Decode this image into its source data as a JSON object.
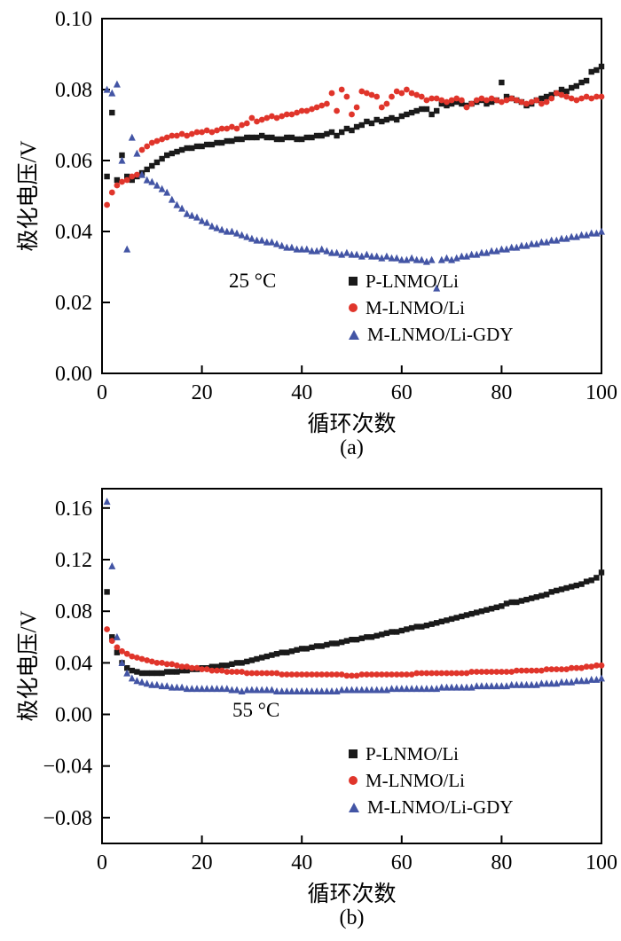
{
  "page": {
    "background": "#ffffff"
  },
  "chart_data": [
    {
      "type": "scatter",
      "panel_label": "(a)",
      "annotation": "25 °C",
      "xlabel": "循环次数",
      "ylabel": "极化电压/V",
      "xlim": [
        0,
        100
      ],
      "ylim": [
        0,
        0.1
      ],
      "xticks": [
        0,
        20,
        40,
        60,
        80,
        100
      ],
      "yticks": [
        0,
        0.02,
        0.04,
        0.06,
        0.08,
        0.1
      ],
      "legend_position": "inside-lower-right",
      "series": [
        {
          "name": "P-LNMO/Li",
          "marker": "square",
          "color": "#1a1a1a",
          "x_start": 1,
          "y": [
            0.0555,
            0.0735,
            0.0545,
            0.0615,
            0.0555,
            0.0545,
            0.0555,
            0.0565,
            0.0575,
            0.0585,
            0.0595,
            0.0605,
            0.0615,
            0.062,
            0.0625,
            0.063,
            0.0635,
            0.0635,
            0.064,
            0.064,
            0.0645,
            0.0645,
            0.065,
            0.065,
            0.0655,
            0.0655,
            0.066,
            0.066,
            0.0665,
            0.0665,
            0.0665,
            0.067,
            0.0665,
            0.0665,
            0.066,
            0.066,
            0.0665,
            0.0665,
            0.066,
            0.066,
            0.0665,
            0.0665,
            0.067,
            0.067,
            0.0675,
            0.068,
            0.067,
            0.068,
            0.069,
            0.0685,
            0.0695,
            0.07,
            0.071,
            0.0705,
            0.0715,
            0.071,
            0.0715,
            0.072,
            0.0715,
            0.0725,
            0.073,
            0.0735,
            0.074,
            0.0745,
            0.0745,
            0.073,
            0.074,
            0.076,
            0.0755,
            0.076,
            0.0765,
            0.076,
            0.0755,
            0.076,
            0.0765,
            0.077,
            0.076,
            0.0765,
            0.077,
            0.082,
            0.078,
            0.0775,
            0.077,
            0.0765,
            0.0755,
            0.076,
            0.077,
            0.0775,
            0.078,
            0.0785,
            0.079,
            0.08,
            0.0795,
            0.0805,
            0.081,
            0.082,
            0.0825,
            0.085,
            0.0855,
            0.0865
          ]
        },
        {
          "name": "M-LNMO/Li",
          "marker": "circle",
          "color": "#e0352b",
          "x_start": 1,
          "y": [
            0.0475,
            0.051,
            0.053,
            0.054,
            0.0545,
            0.0555,
            0.056,
            0.063,
            0.064,
            0.065,
            0.0655,
            0.066,
            0.0665,
            0.067,
            0.067,
            0.0675,
            0.067,
            0.0675,
            0.068,
            0.068,
            0.0685,
            0.068,
            0.0685,
            0.069,
            0.069,
            0.0695,
            0.069,
            0.07,
            0.0705,
            0.072,
            0.071,
            0.0715,
            0.072,
            0.0725,
            0.072,
            0.0725,
            0.073,
            0.073,
            0.0735,
            0.074,
            0.074,
            0.0745,
            0.075,
            0.0755,
            0.076,
            0.079,
            0.074,
            0.08,
            0.078,
            0.073,
            0.075,
            0.0795,
            0.079,
            0.0785,
            0.078,
            0.075,
            0.076,
            0.078,
            0.0795,
            0.079,
            0.08,
            0.079,
            0.0785,
            0.078,
            0.077,
            0.0775,
            0.0775,
            0.077,
            0.0765,
            0.077,
            0.0775,
            0.077,
            0.075,
            0.076,
            0.077,
            0.0775,
            0.077,
            0.0775,
            0.077,
            0.0765,
            0.077,
            0.0775,
            0.077,
            0.0765,
            0.076,
            0.0765,
            0.077,
            0.076,
            0.0765,
            0.0775,
            0.079,
            0.0785,
            0.078,
            0.0775,
            0.077,
            0.0775,
            0.078,
            0.0775,
            0.078,
            0.078
          ]
        },
        {
          "name": "M-LNMO/Li-GDY",
          "marker": "triangle",
          "color": "#4355a5",
          "x_start": 1,
          "y": [
            0.08,
            0.079,
            0.0815,
            0.06,
            0.035,
            0.0665,
            0.062,
            0.056,
            0.0545,
            0.054,
            0.053,
            0.052,
            0.051,
            0.049,
            0.0475,
            0.0465,
            0.045,
            0.0445,
            0.044,
            0.043,
            0.0425,
            0.0415,
            0.041,
            0.0405,
            0.04,
            0.04,
            0.0395,
            0.039,
            0.0385,
            0.038,
            0.0375,
            0.0375,
            0.037,
            0.037,
            0.0365,
            0.036,
            0.0355,
            0.0355,
            0.035,
            0.035,
            0.035,
            0.0345,
            0.0345,
            0.035,
            0.0345,
            0.034,
            0.034,
            0.0335,
            0.034,
            0.0335,
            0.0335,
            0.033,
            0.0335,
            0.033,
            0.033,
            0.0325,
            0.033,
            0.0325,
            0.0325,
            0.032,
            0.032,
            0.0325,
            0.032,
            0.032,
            0.0315,
            0.032,
            0.024,
            0.032,
            0.0325,
            0.032,
            0.0325,
            0.033,
            0.033,
            0.0335,
            0.0335,
            0.034,
            0.034,
            0.0345,
            0.0345,
            0.035,
            0.035,
            0.0355,
            0.0355,
            0.036,
            0.036,
            0.0365,
            0.0365,
            0.037,
            0.037,
            0.0375,
            0.0375,
            0.038,
            0.038,
            0.0385,
            0.0385,
            0.039,
            0.039,
            0.0395,
            0.0395,
            0.04
          ]
        }
      ]
    },
    {
      "type": "scatter",
      "panel_label": "(b)",
      "annotation": "55 °C",
      "xlabel": "循环次数",
      "ylabel": "极化电压/V",
      "xlim": [
        0,
        100
      ],
      "ylim": [
        -0.1,
        0.175
      ],
      "xticks": [
        0,
        20,
        40,
        60,
        80,
        100
      ],
      "yticks": [
        -0.08,
        -0.04,
        0,
        0.04,
        0.08,
        0.12,
        0.16
      ],
      "legend_position": "inside-lower-right",
      "series": [
        {
          "name": "P-LNMO/Li",
          "marker": "square",
          "color": "#1a1a1a",
          "x_start": 1,
          "y": [
            0.095,
            0.06,
            0.048,
            0.04,
            0.036,
            0.034,
            0.033,
            0.032,
            0.032,
            0.032,
            0.032,
            0.032,
            0.033,
            0.033,
            0.033,
            0.034,
            0.034,
            0.035,
            0.035,
            0.036,
            0.036,
            0.037,
            0.037,
            0.038,
            0.038,
            0.039,
            0.04,
            0.04,
            0.041,
            0.042,
            0.043,
            0.044,
            0.045,
            0.046,
            0.047,
            0.048,
            0.048,
            0.049,
            0.05,
            0.051,
            0.051,
            0.052,
            0.053,
            0.053,
            0.054,
            0.055,
            0.055,
            0.056,
            0.057,
            0.058,
            0.058,
            0.059,
            0.06,
            0.06,
            0.061,
            0.062,
            0.063,
            0.064,
            0.064,
            0.065,
            0.066,
            0.067,
            0.068,
            0.068,
            0.069,
            0.07,
            0.071,
            0.072,
            0.073,
            0.074,
            0.075,
            0.076,
            0.077,
            0.078,
            0.079,
            0.08,
            0.081,
            0.082,
            0.083,
            0.084,
            0.086,
            0.087,
            0.087,
            0.088,
            0.089,
            0.09,
            0.091,
            0.092,
            0.093,
            0.095,
            0.096,
            0.097,
            0.098,
            0.099,
            0.1,
            0.101,
            0.103,
            0.104,
            0.106,
            0.11
          ]
        },
        {
          "name": "M-LNMO/Li",
          "marker": "circle",
          "color": "#e0352b",
          "x_start": 1,
          "y": [
            0.066,
            0.057,
            0.052,
            0.049,
            0.047,
            0.045,
            0.044,
            0.043,
            0.042,
            0.041,
            0.04,
            0.04,
            0.039,
            0.039,
            0.038,
            0.037,
            0.037,
            0.036,
            0.036,
            0.035,
            0.035,
            0.034,
            0.034,
            0.034,
            0.033,
            0.033,
            0.033,
            0.033,
            0.032,
            0.032,
            0.032,
            0.032,
            0.032,
            0.032,
            0.032,
            0.031,
            0.031,
            0.031,
            0.031,
            0.031,
            0.031,
            0.031,
            0.031,
            0.031,
            0.031,
            0.031,
            0.031,
            0.031,
            0.03,
            0.03,
            0.03,
            0.031,
            0.031,
            0.031,
            0.031,
            0.031,
            0.031,
            0.031,
            0.031,
            0.031,
            0.031,
            0.031,
            0.032,
            0.032,
            0.032,
            0.032,
            0.032,
            0.032,
            0.032,
            0.032,
            0.032,
            0.032,
            0.032,
            0.033,
            0.033,
            0.033,
            0.033,
            0.033,
            0.033,
            0.033,
            0.033,
            0.033,
            0.034,
            0.034,
            0.034,
            0.034,
            0.034,
            0.034,
            0.035,
            0.035,
            0.035,
            0.035,
            0.035,
            0.036,
            0.036,
            0.036,
            0.037,
            0.037,
            0.038,
            0.038
          ]
        },
        {
          "name": "M-LNMO/Li-GDY",
          "marker": "triangle",
          "color": "#4355a5",
          "x_start": 1,
          "y": [
            0.165,
            0.115,
            0.06,
            0.04,
            0.032,
            0.028,
            0.026,
            0.025,
            0.024,
            0.023,
            0.023,
            0.022,
            0.022,
            0.021,
            0.021,
            0.021,
            0.02,
            0.02,
            0.02,
            0.02,
            0.02,
            0.02,
            0.02,
            0.02,
            0.02,
            0.019,
            0.019,
            0.018,
            0.019,
            0.019,
            0.019,
            0.019,
            0.019,
            0.019,
            0.018,
            0.018,
            0.018,
            0.018,
            0.018,
            0.018,
            0.018,
            0.018,
            0.018,
            0.018,
            0.018,
            0.018,
            0.018,
            0.019,
            0.019,
            0.019,
            0.019,
            0.019,
            0.019,
            0.019,
            0.019,
            0.019,
            0.019,
            0.02,
            0.02,
            0.02,
            0.02,
            0.02,
            0.02,
            0.02,
            0.02,
            0.02,
            0.02,
            0.021,
            0.021,
            0.021,
            0.021,
            0.021,
            0.021,
            0.021,
            0.022,
            0.022,
            0.022,
            0.022,
            0.022,
            0.022,
            0.022,
            0.023,
            0.023,
            0.023,
            0.023,
            0.023,
            0.023,
            0.024,
            0.024,
            0.024,
            0.024,
            0.025,
            0.025,
            0.025,
            0.026,
            0.026,
            0.026,
            0.027,
            0.027,
            0.028
          ]
        }
      ]
    }
  ]
}
